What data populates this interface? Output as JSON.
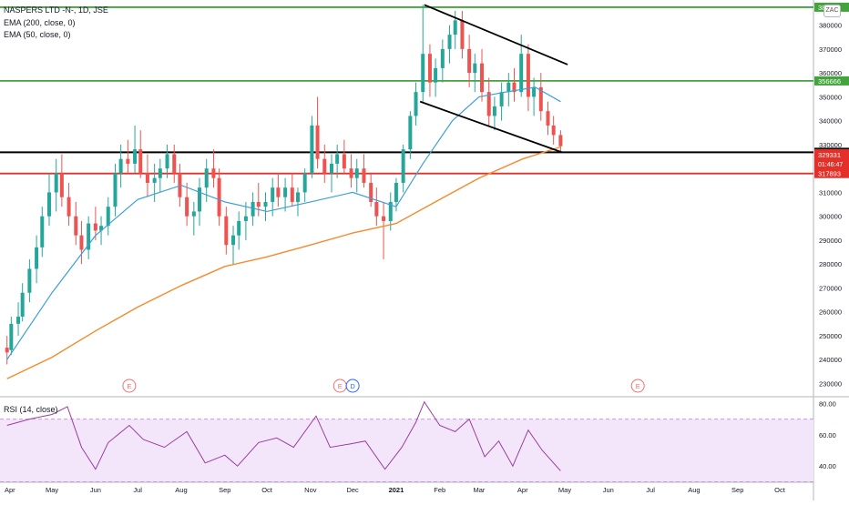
{
  "symbol": "NASPERS LTD -N-, 1D, JSE",
  "badge": "ZAC",
  "legend": [
    "EMA (200, close, 0)",
    "EMA (50, close, 0)"
  ],
  "rsi_label": "RSI (14, close)",
  "colors": {
    "up": "#26a69a",
    "down": "#ef5350",
    "ema50": "#3d9fd6",
    "ema200": "#f58a2d",
    "green_line": "#43a43c",
    "red_line": "#e5302a",
    "rsi": "#9c3ea0",
    "rsi_band": "#f3e6fb"
  },
  "chart_data": [
    {
      "type": "candlestick",
      "x_tick_labels": [
        "Apr",
        "May",
        "Jun",
        "Jul",
        "Aug",
        "Sep",
        "Oct",
        "Nov",
        "Dec",
        "2021",
        "Feb",
        "Mar",
        "Apr",
        "May",
        "Jun",
        "Jul",
        "Aug",
        "Sep",
        "Oct"
      ],
      "y_tick_labels": [
        "230000",
        "240000",
        "250000",
        "260000",
        "270000",
        "280000",
        "290000",
        "300000",
        "310000",
        "320000",
        "330000",
        "340000",
        "350000",
        "360000",
        "370000",
        "380000"
      ],
      "ylim": [
        226000,
        389000
      ],
      "horizontal_levels": [
        {
          "label": "387508",
          "value": 387508,
          "color": "green"
        },
        {
          "label": "356666",
          "value": 356666,
          "color": "green"
        },
        {
          "label": "326769",
          "value": 326769,
          "color": "black"
        },
        {
          "label": "317893",
          "value": 317893,
          "color": "red"
        }
      ],
      "last_price": {
        "label": "329331",
        "countdown": "01:46:47"
      },
      "trend_channel": [
        {
          "from": [
            "2021-01-21",
            388500
          ],
          "to": [
            "2021-05-03",
            363500
          ]
        },
        {
          "from": [
            "2021-01-18",
            348000
          ],
          "to": [
            "2021-04-29",
            326769
          ]
        }
      ],
      "events": [
        {
          "label": "E",
          "x": "2020-06-25"
        },
        {
          "label": "E",
          "x": "2020-11-22"
        },
        {
          "label": "D",
          "x": "2020-12-01"
        },
        {
          "label": "E",
          "x": "2021-06-22"
        }
      ],
      "ohlc": [
        [
          "2020-03-30",
          245000,
          250000,
          238000,
          243000
        ],
        [
          "2020-04-02",
          244000,
          258000,
          242000,
          255000
        ],
        [
          "2020-04-07",
          255000,
          264000,
          250000,
          258000
        ],
        [
          "2020-04-10",
          258000,
          272000,
          256000,
          268000
        ],
        [
          "2020-04-15",
          268000,
          282000,
          264000,
          278000
        ],
        [
          "2020-04-20",
          278000,
          292000,
          272000,
          287000
        ],
        [
          "2020-04-24",
          287000,
          304000,
          283000,
          300000
        ],
        [
          "2020-04-29",
          300000,
          318000,
          296000,
          310000
        ],
        [
          "2020-05-04",
          310000,
          324000,
          302000,
          318000
        ],
        [
          "2020-05-08",
          318000,
          326000,
          304000,
          308000
        ],
        [
          "2020-05-13",
          308000,
          314000,
          296000,
          300000
        ],
        [
          "2020-05-18",
          300000,
          306000,
          288000,
          292000
        ],
        [
          "2020-05-22",
          292000,
          298000,
          280000,
          286000
        ],
        [
          "2020-05-27",
          286000,
          300000,
          282000,
          297000
        ],
        [
          "2020-06-01",
          297000,
          304000,
          290000,
          294000
        ],
        [
          "2020-06-05",
          294000,
          300000,
          288000,
          296000
        ],
        [
          "2020-06-10",
          296000,
          308000,
          292000,
          304000
        ],
        [
          "2020-06-15",
          304000,
          322000,
          300000,
          318000
        ],
        [
          "2020-06-19",
          318000,
          330000,
          312000,
          324000
        ],
        [
          "2020-06-24",
          324000,
          332000,
          318000,
          322000
        ],
        [
          "2020-06-29",
          322000,
          338000,
          318000,
          328000
        ],
        [
          "2020-07-03",
          328000,
          336000,
          316000,
          318000
        ],
        [
          "2020-07-08",
          318000,
          326000,
          308000,
          314000
        ],
        [
          "2020-07-13",
          314000,
          322000,
          306000,
          316000
        ],
        [
          "2020-07-17",
          316000,
          324000,
          310000,
          320000
        ],
        [
          "2020-07-22",
          320000,
          330000,
          316000,
          326000
        ],
        [
          "2020-07-27",
          326000,
          330000,
          314000,
          318000
        ],
        [
          "2020-07-31",
          318000,
          322000,
          304000,
          308000
        ],
        [
          "2020-08-05",
          308000,
          314000,
          296000,
          300000
        ],
        [
          "2020-08-10",
          300000,
          306000,
          292000,
          302000
        ],
        [
          "2020-08-14",
          302000,
          316000,
          296000,
          312000
        ],
        [
          "2020-08-19",
          312000,
          324000,
          306000,
          320000
        ],
        [
          "2020-08-24",
          320000,
          328000,
          312000,
          316000
        ],
        [
          "2020-08-28",
          316000,
          320000,
          296000,
          300000
        ],
        [
          "2020-09-02",
          300000,
          304000,
          284000,
          288000
        ],
        [
          "2020-09-07",
          288000,
          296000,
          280000,
          292000
        ],
        [
          "2020-09-11",
          292000,
          302000,
          286000,
          298000
        ],
        [
          "2020-09-16",
          298000,
          306000,
          290000,
          300000
        ],
        [
          "2020-09-21",
          300000,
          310000,
          296000,
          306000
        ],
        [
          "2020-09-25",
          306000,
          314000,
          300000,
          304000
        ],
        [
          "2020-09-30",
          304000,
          310000,
          298000,
          306000
        ],
        [
          "2020-10-05",
          306000,
          316000,
          300000,
          312000
        ],
        [
          "2020-10-09",
          312000,
          318000,
          304000,
          308000
        ],
        [
          "2020-10-14",
          308000,
          316000,
          302000,
          312000
        ],
        [
          "2020-10-19",
          312000,
          318000,
          304000,
          306000
        ],
        [
          "2020-10-23",
          306000,
          312000,
          300000,
          310000
        ],
        [
          "2020-10-28",
          310000,
          320000,
          306000,
          318000
        ],
        [
          "2020-11-02",
          318000,
          342000,
          316000,
          338000
        ],
        [
          "2020-11-06",
          338000,
          350000,
          320000,
          324000
        ],
        [
          "2020-11-11",
          324000,
          330000,
          314000,
          318000
        ],
        [
          "2020-11-16",
          318000,
          326000,
          310000,
          322000
        ],
        [
          "2020-11-20",
          322000,
          330000,
          316000,
          326000
        ],
        [
          "2020-11-25",
          326000,
          332000,
          318000,
          320000
        ],
        [
          "2020-11-30",
          320000,
          326000,
          312000,
          316000
        ],
        [
          "2020-12-04",
          316000,
          324000,
          310000,
          320000
        ],
        [
          "2020-12-09",
          320000,
          326000,
          312000,
          314000
        ],
        [
          "2020-12-14",
          314000,
          318000,
          304000,
          306000
        ],
        [
          "2020-12-18",
          306000,
          312000,
          296000,
          300000
        ],
        [
          "2020-12-23",
          300000,
          306000,
          282000,
          298000
        ],
        [
          "2020-12-28",
          298000,
          310000,
          294000,
          306000
        ],
        [
          "2021-01-01",
          306000,
          316000,
          302000,
          314000
        ],
        [
          "2021-01-06",
          314000,
          330000,
          310000,
          328000
        ],
        [
          "2021-01-11",
          328000,
          344000,
          324000,
          342000
        ],
        [
          "2021-01-15",
          342000,
          356000,
          338000,
          352000
        ],
        [
          "2021-01-20",
          352000,
          388500,
          348000,
          368000
        ],
        [
          "2021-01-25",
          368000,
          372000,
          350000,
          356000
        ],
        [
          "2021-01-29",
          356000,
          366000,
          350000,
          362000
        ],
        [
          "2021-02-03",
          362000,
          374000,
          356000,
          370000
        ],
        [
          "2021-02-08",
          370000,
          380000,
          364000,
          376000
        ],
        [
          "2021-02-12",
          376000,
          386000,
          370000,
          382000
        ],
        [
          "2021-02-17",
          382000,
          386000,
          366000,
          370000
        ],
        [
          "2021-02-22",
          370000,
          376000,
          354000,
          360000
        ],
        [
          "2021-02-26",
          360000,
          368000,
          352000,
          364000
        ],
        [
          "2021-03-03",
          364000,
          370000,
          348000,
          352000
        ],
        [
          "2021-03-08",
          352000,
          358000,
          338000,
          342000
        ],
        [
          "2021-03-12",
          342000,
          350000,
          336000,
          346000
        ],
        [
          "2021-03-17",
          346000,
          356000,
          340000,
          352000
        ],
        [
          "2021-03-22",
          352000,
          360000,
          346000,
          356000
        ],
        [
          "2021-03-26",
          356000,
          362000,
          348000,
          352000
        ],
        [
          "2021-03-31",
          352000,
          376000,
          350000,
          368000
        ],
        [
          "2021-04-05",
          368000,
          372000,
          344000,
          350000
        ],
        [
          "2021-04-09",
          350000,
          358000,
          342000,
          354000
        ],
        [
          "2021-04-14",
          354000,
          360000,
          340000,
          344000
        ],
        [
          "2021-04-19",
          344000,
          348000,
          334000,
          338000
        ],
        [
          "2021-04-23",
          338000,
          342000,
          330000,
          334000
        ],
        [
          "2021-04-28",
          334000,
          336000,
          326769,
          329331
        ]
      ],
      "ema50": [
        [
          "2020-03-30",
          240000
        ],
        [
          "2020-05-01",
          268000
        ],
        [
          "2020-06-01",
          292000
        ],
        [
          "2020-07-01",
          307000
        ],
        [
          "2020-08-01",
          313000
        ],
        [
          "2020-09-01",
          306000
        ],
        [
          "2020-10-01",
          302000
        ],
        [
          "2020-11-01",
          306000
        ],
        [
          "2020-12-01",
          310000
        ],
        [
          "2021-01-01",
          304000
        ],
        [
          "2021-01-20",
          322000
        ],
        [
          "2021-02-10",
          340000
        ],
        [
          "2021-03-01",
          350000
        ],
        [
          "2021-03-20",
          352000
        ],
        [
          "2021-04-10",
          354000
        ],
        [
          "2021-04-28",
          348000
        ]
      ],
      "ema200": [
        [
          "2020-03-30",
          232000
        ],
        [
          "2020-05-01",
          241000
        ],
        [
          "2020-06-01",
          252000
        ],
        [
          "2020-07-01",
          262000
        ],
        [
          "2020-08-01",
          271000
        ],
        [
          "2020-09-01",
          279000
        ],
        [
          "2020-10-01",
          283000
        ],
        [
          "2020-11-01",
          288000
        ],
        [
          "2020-12-01",
          293000
        ],
        [
          "2021-01-01",
          297000
        ],
        [
          "2021-02-01",
          307000
        ],
        [
          "2021-03-01",
          316000
        ],
        [
          "2021-04-01",
          324000
        ],
        [
          "2021-04-28",
          329000
        ]
      ]
    },
    {
      "type": "line",
      "name": "RSI (14, close)",
      "y_tick_labels": [
        "40.00",
        "60.00",
        "80.00"
      ],
      "ylim": [
        32,
        82
      ],
      "band": [
        30,
        70
      ],
      "values": [
        [
          "2020-03-30",
          66
        ],
        [
          "2020-04-15",
          70
        ],
        [
          "2020-05-01",
          73
        ],
        [
          "2020-05-12",
          78
        ],
        [
          "2020-05-22",
          52
        ],
        [
          "2020-06-01",
          38
        ],
        [
          "2020-06-10",
          55
        ],
        [
          "2020-06-25",
          66
        ],
        [
          "2020-07-05",
          57
        ],
        [
          "2020-07-20",
          52
        ],
        [
          "2020-08-05",
          62
        ],
        [
          "2020-08-18",
          42
        ],
        [
          "2020-09-01",
          47
        ],
        [
          "2020-09-10",
          40
        ],
        [
          "2020-09-25",
          55
        ],
        [
          "2020-10-08",
          58
        ],
        [
          "2020-10-20",
          52
        ],
        [
          "2020-11-05",
          72
        ],
        [
          "2020-11-15",
          52
        ],
        [
          "2020-11-28",
          54
        ],
        [
          "2020-12-10",
          56
        ],
        [
          "2020-12-24",
          38
        ],
        [
          "2021-01-05",
          52
        ],
        [
          "2021-01-15",
          68
        ],
        [
          "2021-01-21",
          81
        ],
        [
          "2021-02-01",
          66
        ],
        [
          "2021-02-12",
          62
        ],
        [
          "2021-02-22",
          70
        ],
        [
          "2021-03-05",
          46
        ],
        [
          "2021-03-15",
          56
        ],
        [
          "2021-03-25",
          40
        ],
        [
          "2021-04-05",
          63
        ],
        [
          "2021-04-15",
          50
        ],
        [
          "2021-04-22",
          43
        ],
        [
          "2021-04-28",
          37
        ]
      ]
    }
  ]
}
